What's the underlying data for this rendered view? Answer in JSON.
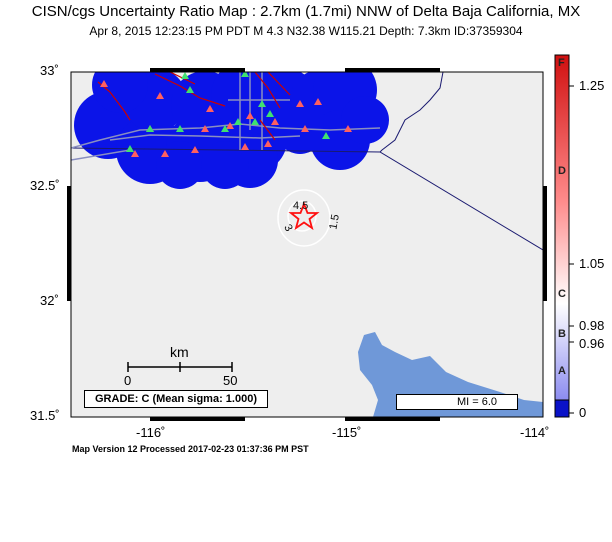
{
  "header": {
    "title": "CISN/cgs Uncertainty Ratio Map : 2.7km (1.7mi) NNW of Delta Baja California, MX",
    "subtitle": "Apr  8, 2015 12:23:15 PM PDT   M 4.3   N32.38 W115.21   Depth: 7.3km   ID:37359304"
  },
  "map": {
    "lat_ticks": [
      "33˚",
      "32.5˚",
      "32˚",
      "31.5˚"
    ],
    "lon_ticks": [
      "-116˚",
      "-115˚",
      "-114˚"
    ],
    "contour_labels": [
      "4.5",
      "3",
      "1.5"
    ],
    "scale_bar": {
      "unit": "km",
      "start": "0",
      "end": "50"
    },
    "grade_text": "GRADE: C (Mean sigma: 1.000)",
    "mi_legend": "MI = 6.0",
    "colors": {
      "ocean": "#6f98d8",
      "uncertainty_blue": "#0b14e8",
      "land": "#eeeeee",
      "fault": "#cc0000",
      "road": "#8a8fc0",
      "border": "#1a1a70",
      "epicenter": "#ff1010"
    }
  },
  "colorbar": {
    "values": [
      "1.25",
      "1.05",
      "0.98",
      "0.96",
      "0"
    ],
    "grades": [
      "F",
      "D",
      "C",
      "B",
      "A"
    ]
  },
  "footer": {
    "text": "Map Version 12 Processed 2017-02-23 01:37:36 PM PST"
  }
}
